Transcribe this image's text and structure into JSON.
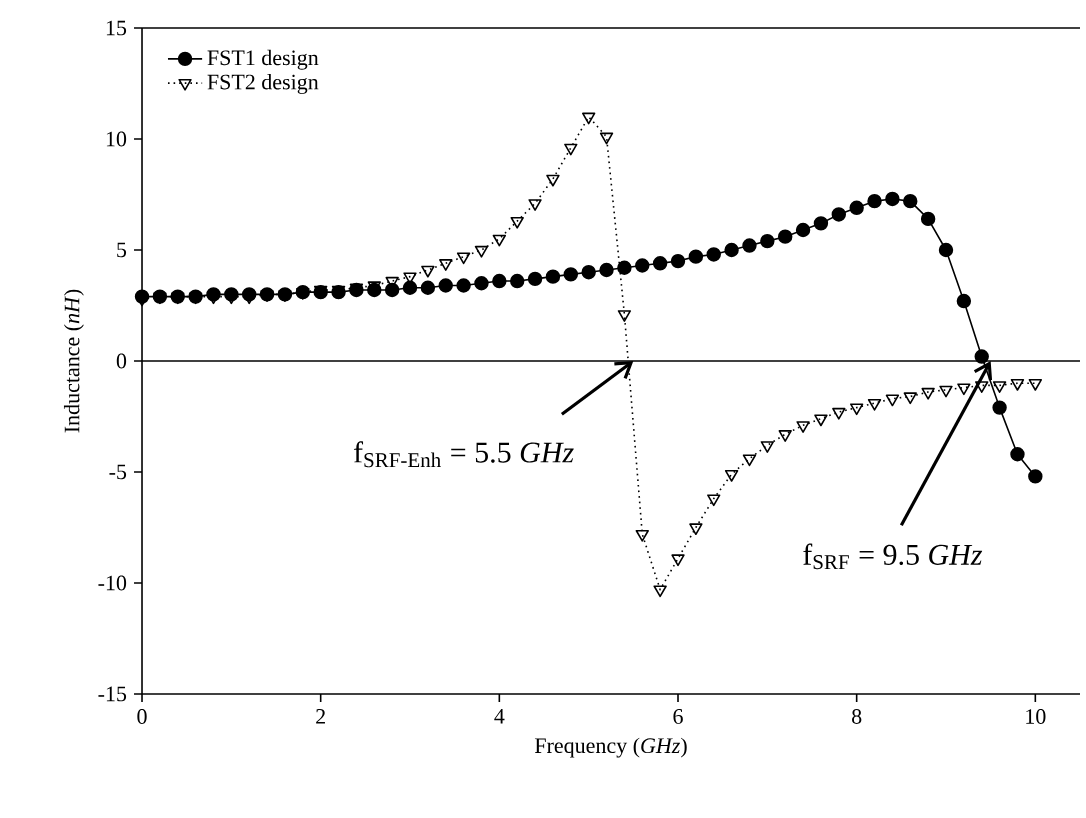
{
  "chart_data": {
    "type": "line",
    "xlabel": "Frequency (*GHz*)",
    "ylabel": "Inductance (*nH*)",
    "x": [
      0,
      0.2,
      0.4,
      0.6,
      0.8,
      1.0,
      1.2,
      1.4,
      1.6,
      1.8,
      2.0,
      2.2,
      2.4,
      2.6,
      2.8,
      3.0,
      3.2,
      3.4,
      3.6,
      3.8,
      4.0,
      4.2,
      4.4,
      4.6,
      4.8,
      5.0,
      5.2,
      5.4,
      5.6,
      5.8,
      6.0,
      6.2,
      6.4,
      6.6,
      6.8,
      7.0,
      7.2,
      7.4,
      7.6,
      7.8,
      8.0,
      8.2,
      8.4,
      8.6,
      8.8,
      9.0,
      9.2,
      9.4,
      9.6,
      9.8,
      10.0
    ],
    "series": [
      {
        "name": "FST1 design",
        "color": "#000000",
        "marker": "circle",
        "line_style": "solid",
        "values": [
          2.9,
          2.9,
          2.9,
          2.9,
          3.0,
          3.0,
          3.0,
          3.0,
          3.0,
          3.1,
          3.1,
          3.1,
          3.2,
          3.2,
          3.2,
          3.3,
          3.3,
          3.4,
          3.4,
          3.5,
          3.6,
          3.6,
          3.7,
          3.8,
          3.9,
          4.0,
          4.1,
          4.2,
          4.3,
          4.4,
          4.5,
          4.7,
          4.8,
          5.0,
          5.2,
          5.4,
          5.6,
          5.9,
          6.2,
          6.6,
          6.9,
          7.2,
          7.3,
          7.2,
          6.4,
          5.0,
          2.7,
          0.2,
          -2.1,
          -4.2,
          -5.2
        ]
      },
      {
        "name": "FST2 design",
        "color": "#000000",
        "marker": "triangle",
        "line_style": "dotted",
        "values": [
          2.8,
          2.9,
          2.9,
          2.9,
          2.9,
          2.9,
          2.9,
          3.0,
          3.0,
          3.1,
          3.2,
          3.2,
          3.3,
          3.4,
          3.6,
          3.8,
          4.1,
          4.4,
          4.7,
          5.0,
          5.5,
          6.3,
          7.1,
          8.2,
          9.6,
          11.0,
          10.1,
          2.1,
          -7.8,
          -10.3,
          -8.9,
          -7.5,
          -6.2,
          -5.1,
          -4.4,
          -3.8,
          -3.3,
          -2.9,
          -2.6,
          -2.3,
          -2.1,
          -1.9,
          -1.7,
          -1.6,
          -1.4,
          -1.3,
          -1.2,
          -1.1,
          -1.1,
          -1.0,
          -1.0
        ]
      }
    ],
    "xlim": [
      0,
      10.5
    ],
    "xticks": [
      0,
      2,
      4,
      6,
      8,
      10
    ],
    "ylim": [
      -15,
      15
    ],
    "yticks": [
      -15,
      -10,
      -5,
      0,
      5,
      10,
      15
    ],
    "ref_lines": [
      {
        "axis": "y",
        "value": 0,
        "color": "#000000",
        "line_style": "solid"
      }
    ],
    "annotations": [
      {
        "text": "f$_{SRF-Enh}$ = 5.5 *GHz*",
        "x": 5.5,
        "y": 0
      },
      {
        "text": "f$_{SRF}$ = 9.5 *GHz*",
        "x": 9.5,
        "y": 0
      }
    ],
    "grid": false,
    "legend": "top left"
  }
}
